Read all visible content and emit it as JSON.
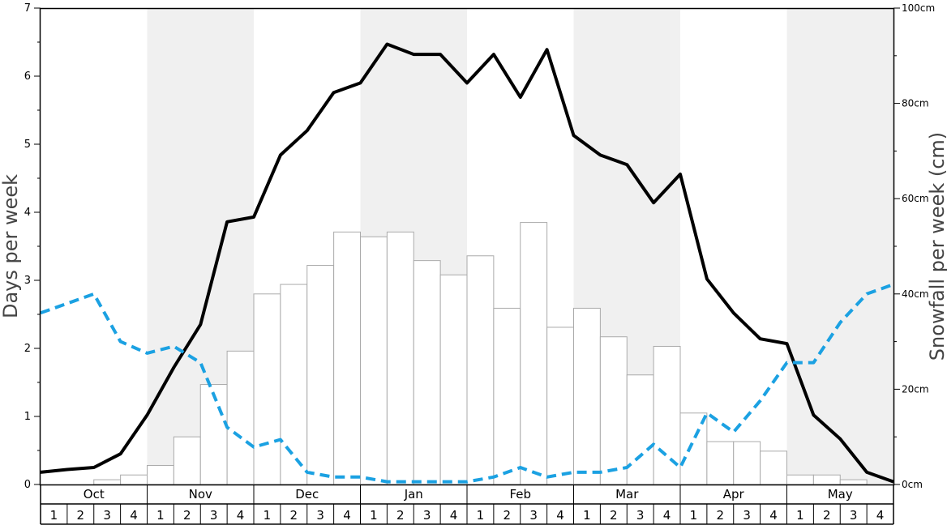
{
  "chart_data": {
    "type": "bar+line",
    "ylabel_left": "Days per week",
    "ylabel_right": "Snowfall per week (cm)",
    "left_axis": {
      "ylim": [
        0,
        7
      ],
      "ticks": [
        "0",
        "1",
        "2",
        "3",
        "4",
        "5",
        "6",
        "7"
      ]
    },
    "right_axis": {
      "ylim": [
        0,
        100
      ],
      "ticks": [
        "0cm",
        "20cm",
        "40cm",
        "60cm",
        "80cm",
        "100cm"
      ]
    },
    "months": [
      "Oct",
      "Nov",
      "Dec",
      "Jan",
      "Feb",
      "Mar",
      "Apr",
      "May"
    ],
    "weeks": [
      "1",
      "2",
      "3",
      "4"
    ],
    "grid": false,
    "shaded_months": [
      "Nov",
      "Jan",
      "Mar",
      "May"
    ],
    "colors": {
      "bars_fill": "#ffffff",
      "bars_stroke": "#aaaaaa",
      "solid_line": "#000000",
      "dashed_line": "#1ba1e2",
      "shade": "#f0f0f0"
    },
    "series": [
      {
        "kind": "bar",
        "axis": "left",
        "values": [
          0,
          0,
          0.07,
          0.14,
          0.28,
          0.7,
          1.47,
          1.96,
          2.8,
          2.94,
          3.22,
          3.71,
          3.64,
          3.71,
          3.29,
          3.08,
          3.36,
          2.59,
          3.85,
          2.31,
          2.59,
          2.17,
          1.61,
          2.03,
          1.05,
          0.63,
          0.63,
          0.49,
          0.14,
          0.14,
          0.07,
          0
        ]
      },
      {
        "kind": "line",
        "style": "solid",
        "axis": "left",
        "values": [
          0.18,
          0.22,
          0.25,
          0.45,
          1.02,
          1.72,
          2.35,
          3.86,
          3.93,
          4.84,
          5.2,
          5.76,
          5.9,
          6.47,
          6.32,
          6.32,
          5.9,
          6.32,
          5.69,
          6.39,
          5.13,
          4.84,
          4.7,
          4.14,
          4.56,
          3.02,
          2.52,
          2.14,
          2.07,
          1.02,
          0.67,
          0.18,
          0.04
        ]
      },
      {
        "kind": "line",
        "style": "dashed",
        "axis": "left",
        "values": [
          2.52,
          2.66,
          2.8,
          2.1,
          1.93,
          2.03,
          1.79,
          0.84,
          0.55,
          0.66,
          0.18,
          0.11,
          0.11,
          0.04,
          0.04,
          0.04,
          0.04,
          0.11,
          0.25,
          0.11,
          0.18,
          0.18,
          0.25,
          0.59,
          0.25,
          1.05,
          0.77,
          1.23,
          1.79,
          1.79,
          2.38,
          2.8,
          2.94
        ]
      }
    ]
  }
}
